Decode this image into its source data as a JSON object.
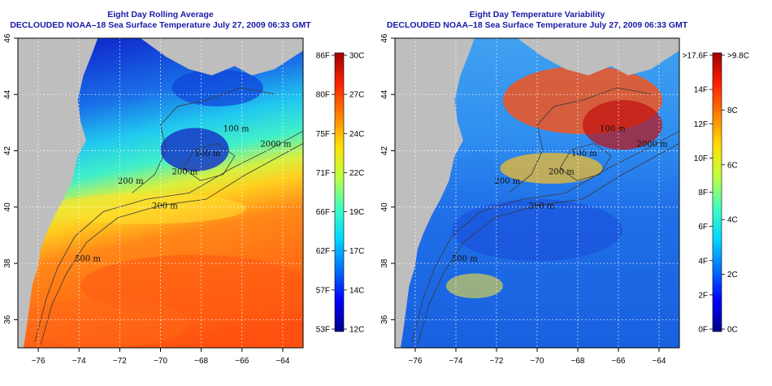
{
  "chart_data": [
    {
      "type": "heatmap",
      "title": "Eight Day Rolling Average",
      "subtitle": "DECLOUDED NOAA–18 Sea Surface Temperature July 27, 2009 06:33 GMT",
      "x_ticks": [
        "−76",
        "−74",
        "−72",
        "−70",
        "−68",
        "−66",
        "−64"
      ],
      "y_ticks": [
        "36",
        "38",
        "40",
        "42",
        "44",
        "46"
      ],
      "xlim": [
        -77,
        -63
      ],
      "ylim": [
        35,
        46
      ],
      "grid": true,
      "isobath_labels": [
        "100 m",
        "200 m",
        "200 m",
        "2000 m",
        "100 m",
        "200 m",
        "500 m"
      ],
      "colorbar": {
        "left_labels": [
          "86F",
          "80F",
          "75F",
          "71F",
          "66F",
          "62F",
          "57F",
          "53F"
        ],
        "right_labels": [
          "30C",
          "27C",
          "24C",
          "22C",
          "19C",
          "17C",
          "14C",
          "12C"
        ],
        "range_c": [
          10,
          30
        ]
      }
    },
    {
      "type": "heatmap",
      "title": "Eight Day Temperature Variability",
      "subtitle": "DECLOUDED NOAA–18 Sea Surface Temperature July 27, 2009 06:33 GMT",
      "x_ticks": [
        "−76",
        "−74",
        "−72",
        "−70",
        "−68",
        "−66",
        "−64"
      ],
      "y_ticks": [
        "36",
        "38",
        "40",
        "42",
        "44",
        "46"
      ],
      "xlim": [
        -77,
        -63
      ],
      "ylim": [
        35,
        46
      ],
      "grid": true,
      "isobath_labels": [
        "100 m",
        "200 m",
        "200 m",
        "2000 m",
        "100 m",
        "200 m",
        "500 m"
      ],
      "colorbar": {
        "left_labels": [
          ">17.6F",
          "14F",
          "12F",
          "10F",
          "8F",
          "6F",
          "4F",
          "2F",
          "0F"
        ],
        "right_labels": [
          ">9.8C",
          "8C",
          "6C",
          "4C",
          "2C",
          "0C"
        ],
        "range_c": [
          0,
          9.8
        ]
      }
    }
  ],
  "colors": {
    "land": "#bebebe",
    "title": "#1a1aa8",
    "isobath": "#3a3a3a",
    "scale": [
      "#00008b",
      "#0000ff",
      "#0070ff",
      "#00d8ff",
      "#40ffbf",
      "#c0ff40",
      "#ffe000",
      "#ff8000",
      "#ff2000",
      "#a00000"
    ]
  }
}
